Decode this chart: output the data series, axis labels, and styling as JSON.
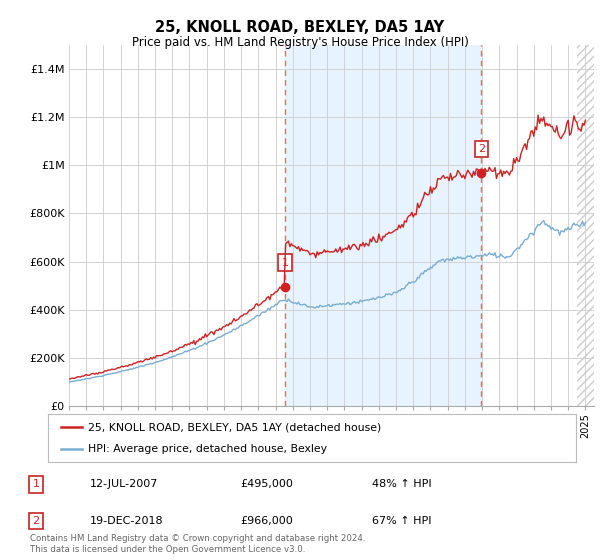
{
  "title": "25, KNOLL ROAD, BEXLEY, DA5 1AY",
  "subtitle": "Price paid vs. HM Land Registry's House Price Index (HPI)",
  "ylim": [
    0,
    1500000
  ],
  "yticks": [
    0,
    200000,
    400000,
    600000,
    800000,
    1000000,
    1200000,
    1400000
  ],
  "ytick_labels": [
    "£0",
    "£200K",
    "£400K",
    "£600K",
    "£800K",
    "£1M",
    "£1.2M",
    "£1.4M"
  ],
  "xlim_start": 1995,
  "xlim_end": 2025.5,
  "hpi_color": "#7aadd4",
  "price_color": "#cc2222",
  "dashed_line_color": "#ee6666",
  "shade_color": "#ddeeff",
  "hatch_color": "#cccccc",
  "legend_label_price": "25, KNOLL ROAD, BEXLEY, DA5 1AY (detached house)",
  "legend_label_hpi": "HPI: Average price, detached house, Bexley",
  "sale1_year": 2007.54,
  "sale1_price": 495000,
  "sale2_year": 2018.96,
  "sale2_price": 966000,
  "hatch_start": 2024.5,
  "annotation1_date": "12-JUL-2007",
  "annotation1_price": "£495,000",
  "annotation1_hpi": "48% ↑ HPI",
  "annotation2_date": "19-DEC-2018",
  "annotation2_price": "£966,000",
  "annotation2_hpi": "67% ↑ HPI",
  "footer": "Contains HM Land Registry data © Crown copyright and database right 2024.\nThis data is licensed under the Open Government Licence v3.0.",
  "background_color": "#ffffff",
  "grid_color": "#cccccc"
}
